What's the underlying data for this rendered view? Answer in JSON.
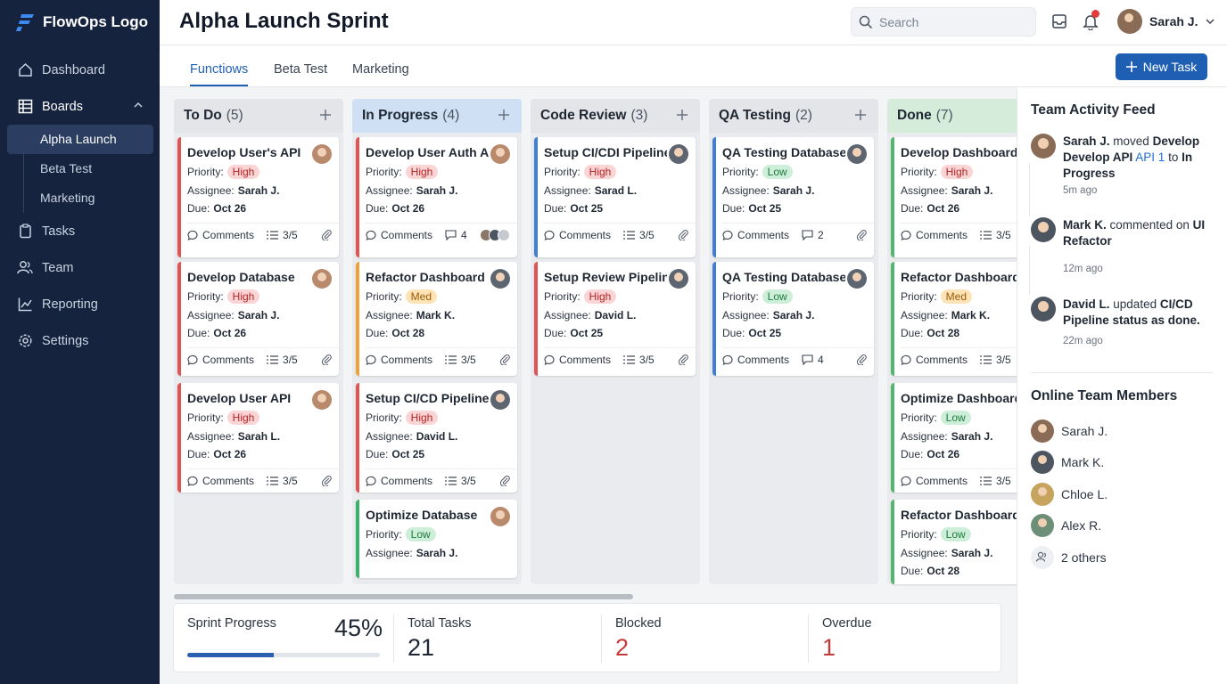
{
  "app": {
    "logo": "FlowOps Logo",
    "brand_color": "#1f5fb3",
    "sidebar_color": "#15233e"
  },
  "sidebar": {
    "items": [
      {
        "label": "Dashboard",
        "icon": "home-icon"
      },
      {
        "label": "Boards",
        "icon": "grid-icon"
      },
      {
        "label": "Tasks",
        "icon": "clipboard-icon"
      },
      {
        "label": "Team",
        "icon": "people-icon"
      },
      {
        "label": "Reporting",
        "icon": "chart-line-icon"
      },
      {
        "label": "Settings",
        "icon": "gear-icon"
      }
    ],
    "boards": [
      "Alpha Launch",
      "Beta Test",
      "Marketing"
    ]
  },
  "header": {
    "title": "Alpha Launch Sprint",
    "search_placeholder": "Search",
    "user": "Sarah J."
  },
  "tabs": {
    "items": [
      "Functiows",
      "Beta Test",
      "Marketing"
    ],
    "new_task": "New Task"
  },
  "labels": {
    "priority": "Priority:",
    "assignee": "Assignee:",
    "due": "Due:",
    "comments": "Comments"
  },
  "columns": [
    {
      "title": "To Do",
      "count": "(5)",
      "head_color": "#e3e5e8",
      "cards": [
        {
          "title": "Develop User's API",
          "priority": "High",
          "assignee": "Sarah J.",
          "due": "Oct 26",
          "extra": "3/5"
        },
        {
          "title": "Develop Database",
          "priority": "High",
          "assignee": "Sarah J.",
          "due": "Oct 26",
          "extra": "3/5"
        },
        {
          "title": "Develop User API",
          "priority": "High",
          "assignee": "Sarah L.",
          "due": "Oct 26",
          "extra": "3/5"
        }
      ]
    },
    {
      "title": "In Progress",
      "count": "(4)",
      "head_color": "#cfe0f5",
      "cards": [
        {
          "title": "Develop User Auth API",
          "priority": "High",
          "assignee": "Sarah J.",
          "due": "Oct 26",
          "extra": "4"
        },
        {
          "title": "Refactor Dashboard UI",
          "priority": "Med",
          "assignee": "Mark K.",
          "due": "Oct 28",
          "extra": "3/5"
        },
        {
          "title": "Setup CI/CD Pipeline",
          "priority": "High",
          "assignee": "David L.",
          "due": "Oct 25",
          "extra": "3/5"
        },
        {
          "title": "Optimize Database",
          "priority": "Low",
          "assignee": "Sarah J."
        }
      ]
    },
    {
      "title": "Code Review",
      "count": "(3)",
      "head_color": "#e3e5e8",
      "cards": [
        {
          "title": "Setup CI/CDI Pipeline",
          "priority": "High",
          "assignee": "Sarad L.",
          "due": "Oct 25",
          "extra": "3/5"
        },
        {
          "title": "Setup Review Pipeline",
          "priority": "High",
          "assignee": "David L.",
          "due": "Oct 25",
          "extra": "3/5"
        }
      ]
    },
    {
      "title": "QA Testing",
      "count": "(2)",
      "head_color": "#e3e5e8",
      "cards": [
        {
          "title": "QA Testing Database",
          "priority": "Low",
          "assignee": "Sarah J.",
          "due": "Oct 25",
          "extra": "2"
        },
        {
          "title": "QA Testing Database",
          "priority": "Low",
          "assignee": "Sarah J.",
          "due": "Oct 25",
          "extra": "4"
        }
      ]
    },
    {
      "title": "Done",
      "count": "(7)",
      "head_color": "#d4ecd9",
      "cards": [
        {
          "title": "Develop Dashboard UI",
          "priority": "High",
          "assignee": "Sarah J.",
          "due": "Oct 26",
          "extra": "3/5"
        },
        {
          "title": "Refactor Dashboard UI",
          "priority": "Med",
          "assignee": "Mark K.",
          "due": "Oct 28",
          "extra": "3/5"
        },
        {
          "title": "Optimize Dashboard UI",
          "priority": "Low",
          "assignee": "Sarah J.",
          "due": "Oct 26",
          "extra": "3/5"
        },
        {
          "title": "Refactor Dashboard UI",
          "priority": "Low",
          "assignee": "Sarah J.",
          "due": "Oct 28"
        }
      ]
    }
  ],
  "stats": {
    "sprint_label": "Sprint Progress",
    "sprint_value": "45%",
    "sprint_fraction": 0.45,
    "total_label": "Total Tasks",
    "total_value": "21",
    "blocked_label": "Blocked",
    "blocked_value": "2",
    "overdue_label": "Overdue",
    "overdue_value": "1"
  },
  "feed": {
    "title": "Team Activity Feed",
    "items": [
      {
        "user": "Sarah J.",
        "text": "moved",
        "obj": "Develop Develop API",
        "link": "API 1",
        "tail": "to",
        "target": "In Progress",
        "time": "5m ago"
      },
      {
        "user": "Mark K.",
        "text": "commented on",
        "obj": "UI Refactor",
        "time": "12m ago"
      },
      {
        "user": "David L.",
        "text": "updated",
        "obj": "CI/CD Pipeline status as done.",
        "time": "22m ago"
      }
    ]
  },
  "online": {
    "title": "Online Team Members",
    "members": [
      "Sarah J.",
      "Mark K.",
      "Chloe L.",
      "Alex R.",
      "2 others"
    ]
  }
}
